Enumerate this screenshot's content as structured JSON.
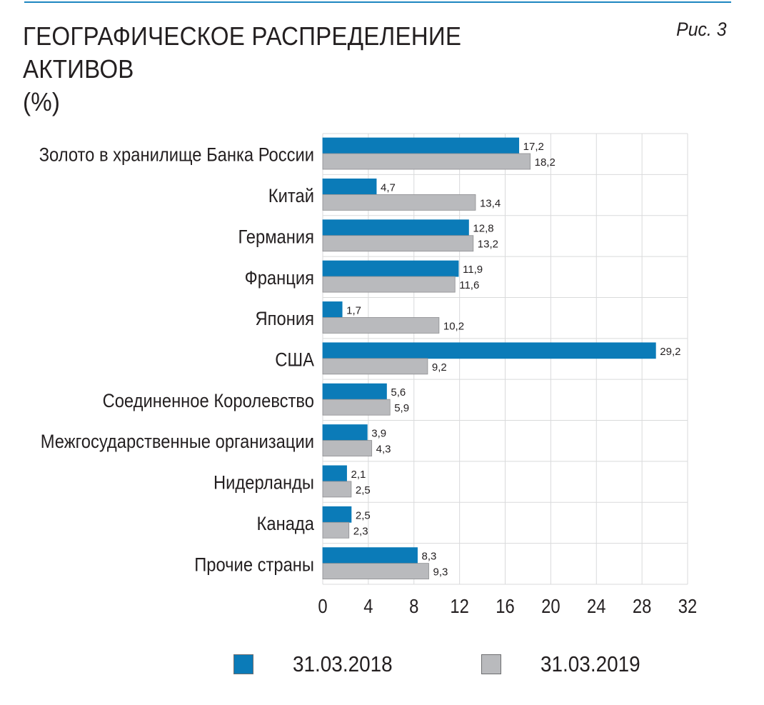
{
  "header": {
    "title_line1": "ГЕОГРАФИЧЕСКОЕ РАСПРЕДЕЛЕНИЕ АКТИВОВ",
    "title_line2": "(%)",
    "figure_label": "Рис. 3"
  },
  "colors": {
    "series_2018": "#0b7bb8",
    "series_2019": "#b9babd",
    "accent_rule": "#1d86c0",
    "grid": "#d9dadb"
  },
  "chart_data": {
    "type": "bar",
    "orientation": "horizontal",
    "title": "ГЕОГРАФИЧЕСКОЕ РАСПРЕДЕЛЕНИЕ АКТИВОВ (%)",
    "categories": [
      "Золото в хранилище Банка России",
      "Китай",
      "Германия",
      "Франция",
      "Япония",
      "США",
      "Соединенное Королевство",
      "Межгосударственные организации",
      "Нидерланды",
      "Канада",
      "Прочие страны"
    ],
    "series": [
      {
        "name": "31.03.2018",
        "values": [
          17.2,
          4.7,
          12.8,
          11.9,
          1.7,
          29.2,
          5.6,
          3.9,
          2.1,
          2.5,
          8.3
        ],
        "labels": [
          "17,2",
          "4,7",
          "12,8",
          "11,9",
          "1,7",
          "29,2",
          "5,6",
          "3,9",
          "2,1",
          "2,5",
          "8,3"
        ]
      },
      {
        "name": "31.03.2019",
        "values": [
          18.2,
          13.4,
          13.2,
          11.6,
          10.2,
          9.2,
          5.9,
          4.3,
          2.5,
          2.3,
          9.3
        ],
        "labels": [
          "18,2",
          "13,4",
          "13,2",
          "11,6",
          "10,2",
          "9,2",
          "5,9",
          "4,3",
          "2,5",
          "2,3",
          "9,3"
        ]
      }
    ],
    "xlim": [
      0,
      32
    ],
    "xticks": [
      0,
      4,
      8,
      12,
      16,
      20,
      24,
      28,
      32
    ],
    "grid": true,
    "legend_position": "bottom"
  }
}
